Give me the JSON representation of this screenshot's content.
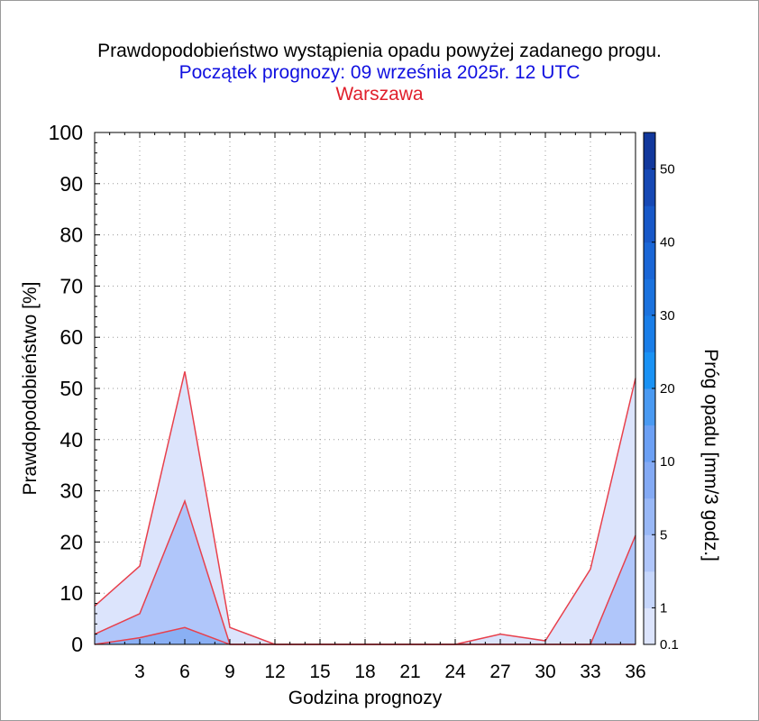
{
  "header": {
    "title": "Prawdopodobieństwo wystąpienia opadu powyżej zadanego progu.",
    "subtitle": "Początek prognozy: 09 września 2025r. 12 UTC",
    "location": "Warszawa"
  },
  "colors": {
    "title": "#000000",
    "subtitle": "#1010e0",
    "location": "#e0202c",
    "series_line": "#e8404c"
  },
  "chart_data": {
    "type": "area",
    "xlabel": "Godzina prognozy",
    "ylabel": "Prawdopodobieństwo [%]",
    "xlim": [
      0,
      36
    ],
    "ylim": [
      0,
      100
    ],
    "x_ticks": [
      3,
      6,
      9,
      12,
      15,
      18,
      21,
      24,
      27,
      30,
      33,
      36
    ],
    "y_ticks": [
      0,
      10,
      20,
      30,
      40,
      50,
      60,
      70,
      80,
      90,
      100
    ],
    "grid": true,
    "x": [
      0,
      3,
      6,
      9,
      12,
      15,
      18,
      21,
      24,
      27,
      30,
      33,
      36
    ],
    "series": [
      {
        "threshold": "0.1",
        "values": [
          7.5,
          15.3,
          53.3,
          3.3,
          0,
          0,
          0,
          0,
          0,
          2.0,
          0.7,
          14.7,
          52.0
        ],
        "fill": "#dce4fc"
      },
      {
        "threshold": "1",
        "values": [
          2.0,
          6.0,
          28.0,
          0,
          0,
          0,
          0,
          0,
          0,
          0,
          0,
          0,
          21.3
        ],
        "fill": "#b0c6fa"
      },
      {
        "threshold": "5",
        "values": [
          0,
          1.3,
          3.3,
          0,
          0,
          0,
          0,
          0,
          0,
          0,
          0,
          0,
          0
        ],
        "fill": "#8ab0f4"
      }
    ],
    "colorbar": {
      "label": "Próg opadu [mm/3 godz.]",
      "tick_labels": [
        "0.1",
        "1",
        "5",
        "10",
        "20",
        "30",
        "40",
        "50"
      ],
      "segments": [
        "#dce4fc",
        "#c6d6fb",
        "#b0c6fa",
        "#99b8f6",
        "#84aaf4",
        "#6ca0f4",
        "#4a9af2",
        "#1a92f4",
        "#1a7ee8",
        "#1b72de",
        "#1a66d6",
        "#1858c8",
        "#1648b4",
        "#12389c"
      ]
    }
  }
}
